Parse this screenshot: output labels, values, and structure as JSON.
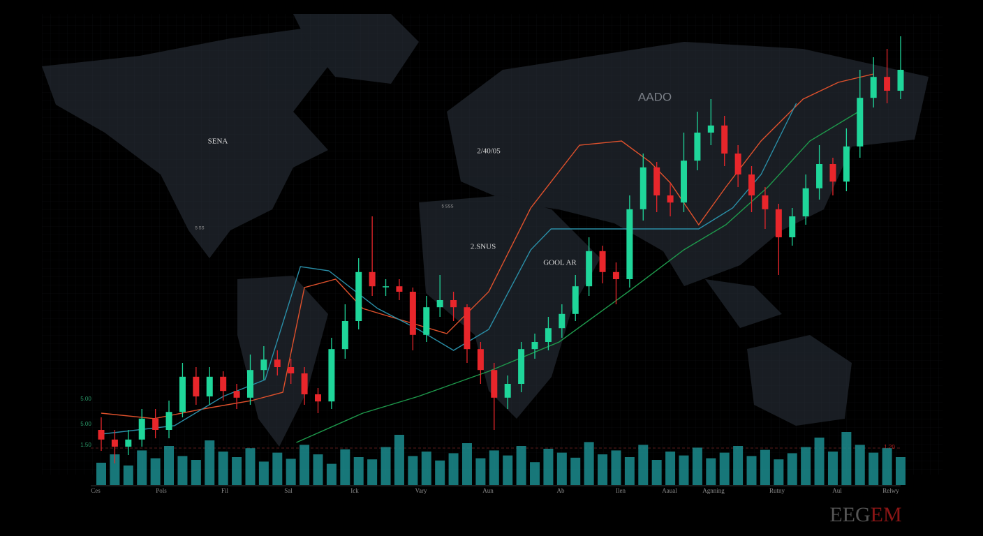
{
  "chart_data": {
    "type": "candlestick",
    "watermark": "EEGEM",
    "annotations": [
      "SENA",
      "AADO",
      "2/40/05",
      "5 SSS",
      "5 SS",
      "2.SNUS",
      "GOOL AR",
      "5.00",
      "5.00",
      "1.50",
      "1.20"
    ],
    "x_labels": [
      "Ces",
      "Pols",
      "Fil",
      "Sal",
      "Ick",
      "Vary",
      "Aun",
      "Ab",
      "Ilen",
      "Aaual",
      "Agnning",
      "Rutny",
      "Aul",
      "Relwy"
    ],
    "ylim": [
      0,
      110
    ],
    "up_color": "#1fd69a",
    "down_color": "#e8262b",
    "open": [
      14,
      11.7,
      10,
      11.7,
      16.7,
      14,
      18.3,
      26.7,
      22,
      26.7,
      23.3,
      21.7,
      28.3,
      30.8,
      29,
      27.5,
      22.5,
      20.8,
      33.3,
      40,
      51.7,
      48.3,
      48.3,
      47,
      36.7,
      43.3,
      45,
      43.3,
      33.3,
      28.3,
      21.7,
      25,
      33.3,
      35,
      38.3,
      41.7,
      48.3,
      56.7,
      51.7,
      50,
      66.7,
      76.7,
      70,
      68.3,
      78.3,
      85,
      86.7,
      80,
      75,
      70,
      66.7,
      60,
      65,
      71.7,
      77.5,
      73.3,
      81.7,
      93.3,
      98.3,
      95
    ],
    "high": [
      17,
      14,
      14,
      19,
      19,
      21,
      30,
      29,
      29,
      28,
      25,
      32,
      34,
      33,
      31,
      29,
      24,
      36,
      44,
      55,
      65,
      50,
      50,
      48,
      46,
      51,
      47,
      44,
      35,
      30,
      27,
      35,
      37,
      41,
      44,
      51,
      60,
      58,
      54,
      70,
      80,
      78,
      73,
      85,
      90,
      93,
      89,
      82,
      77,
      72,
      68,
      67,
      75,
      82,
      79,
      86,
      100,
      103,
      105,
      108
    ],
    "low": [
      9,
      6,
      8,
      10,
      12,
      12,
      17,
      20,
      20,
      21,
      19,
      20,
      26,
      27,
      25,
      20,
      18,
      19,
      31,
      38,
      46,
      46,
      45,
      33,
      35,
      41,
      40,
      30,
      25,
      14,
      19,
      23,
      31,
      33,
      36,
      40,
      46,
      49,
      44,
      48,
      64,
      66,
      65,
      66,
      76,
      82,
      77,
      72,
      66,
      62,
      51,
      58,
      63,
      69,
      70,
      71,
      79,
      91,
      92,
      93
    ],
    "close": [
      11.7,
      10,
      11.7,
      16.7,
      14,
      18.3,
      26.7,
      22,
      26.7,
      23.3,
      21.7,
      28.3,
      30.8,
      29,
      27.5,
      22.5,
      20.8,
      33.3,
      40,
      51.7,
      48.3,
      48.3,
      47,
      36.7,
      43.3,
      45,
      43.3,
      33.3,
      28.3,
      21.7,
      25,
      33.3,
      35,
      38.3,
      41.7,
      48.3,
      56.7,
      51.7,
      50,
      66.7,
      76.7,
      70,
      68.3,
      78.3,
      85,
      86.7,
      80,
      75,
      70,
      66.7,
      60,
      65,
      71.7,
      77.5,
      73.3,
      81.7,
      93.3,
      98.3,
      95,
      100
    ],
    "volume": {
      "color": "#1b8c8e",
      "ylim": [
        0,
        100
      ],
      "values": [
        40,
        55,
        35,
        62,
        48,
        70,
        52,
        45,
        80,
        60,
        50,
        66,
        42,
        58,
        47,
        72,
        55,
        38,
        64,
        50,
        46,
        68,
        90,
        52,
        60,
        44,
        57,
        75,
        48,
        62,
        53,
        70,
        41,
        65,
        58,
        49,
        77,
        55,
        62,
        50,
        72,
        45,
        60,
        53,
        67,
        48,
        58,
        70,
        52,
        63,
        46,
        57,
        68,
        85,
        60,
        95,
        72,
        58,
        66,
        50
      ]
    },
    "lines": [
      {
        "color": "#e0512c",
        "x": [
          0,
          3.9,
          7.5,
          11.1,
          13.4,
          15,
          17.3,
          19.3,
          22.4,
          25.5,
          28.6,
          31.7,
          35.3,
          38.4,
          40.5,
          42,
          44.1,
          46.1,
          48.7,
          51.8,
          54.4,
          57
        ],
        "values": [
          18,
          16.7,
          19,
          21,
          23,
          48,
          50,
          43,
          40,
          37,
          47,
          67,
          82,
          83,
          78,
          73,
          63,
          72,
          83,
          93,
          97,
          99
        ]
      },
      {
        "color": "#2a8fa8",
        "x": [
          0,
          5.4,
          9,
          12.1,
          14.7,
          16.8,
          20.4,
          23.4,
          26,
          28.6,
          31.7,
          33.2,
          44.1,
          46.6,
          48.7,
          51.3
        ],
        "values": [
          13,
          15,
          22,
          26,
          53,
          52,
          43,
          38,
          33,
          38,
          57,
          62,
          62,
          67,
          75,
          92
        ]
      },
      {
        "color": "#1e9a4c",
        "x": [
          14.4,
          19.3,
          23.4,
          28.6,
          33.8,
          38.9,
          43,
          46.1,
          49.2,
          52.3,
          55.9
        ],
        "values": [
          11,
          18,
          22,
          28,
          35,
          47,
          57,
          63,
          72,
          83,
          90
        ]
      }
    ]
  }
}
